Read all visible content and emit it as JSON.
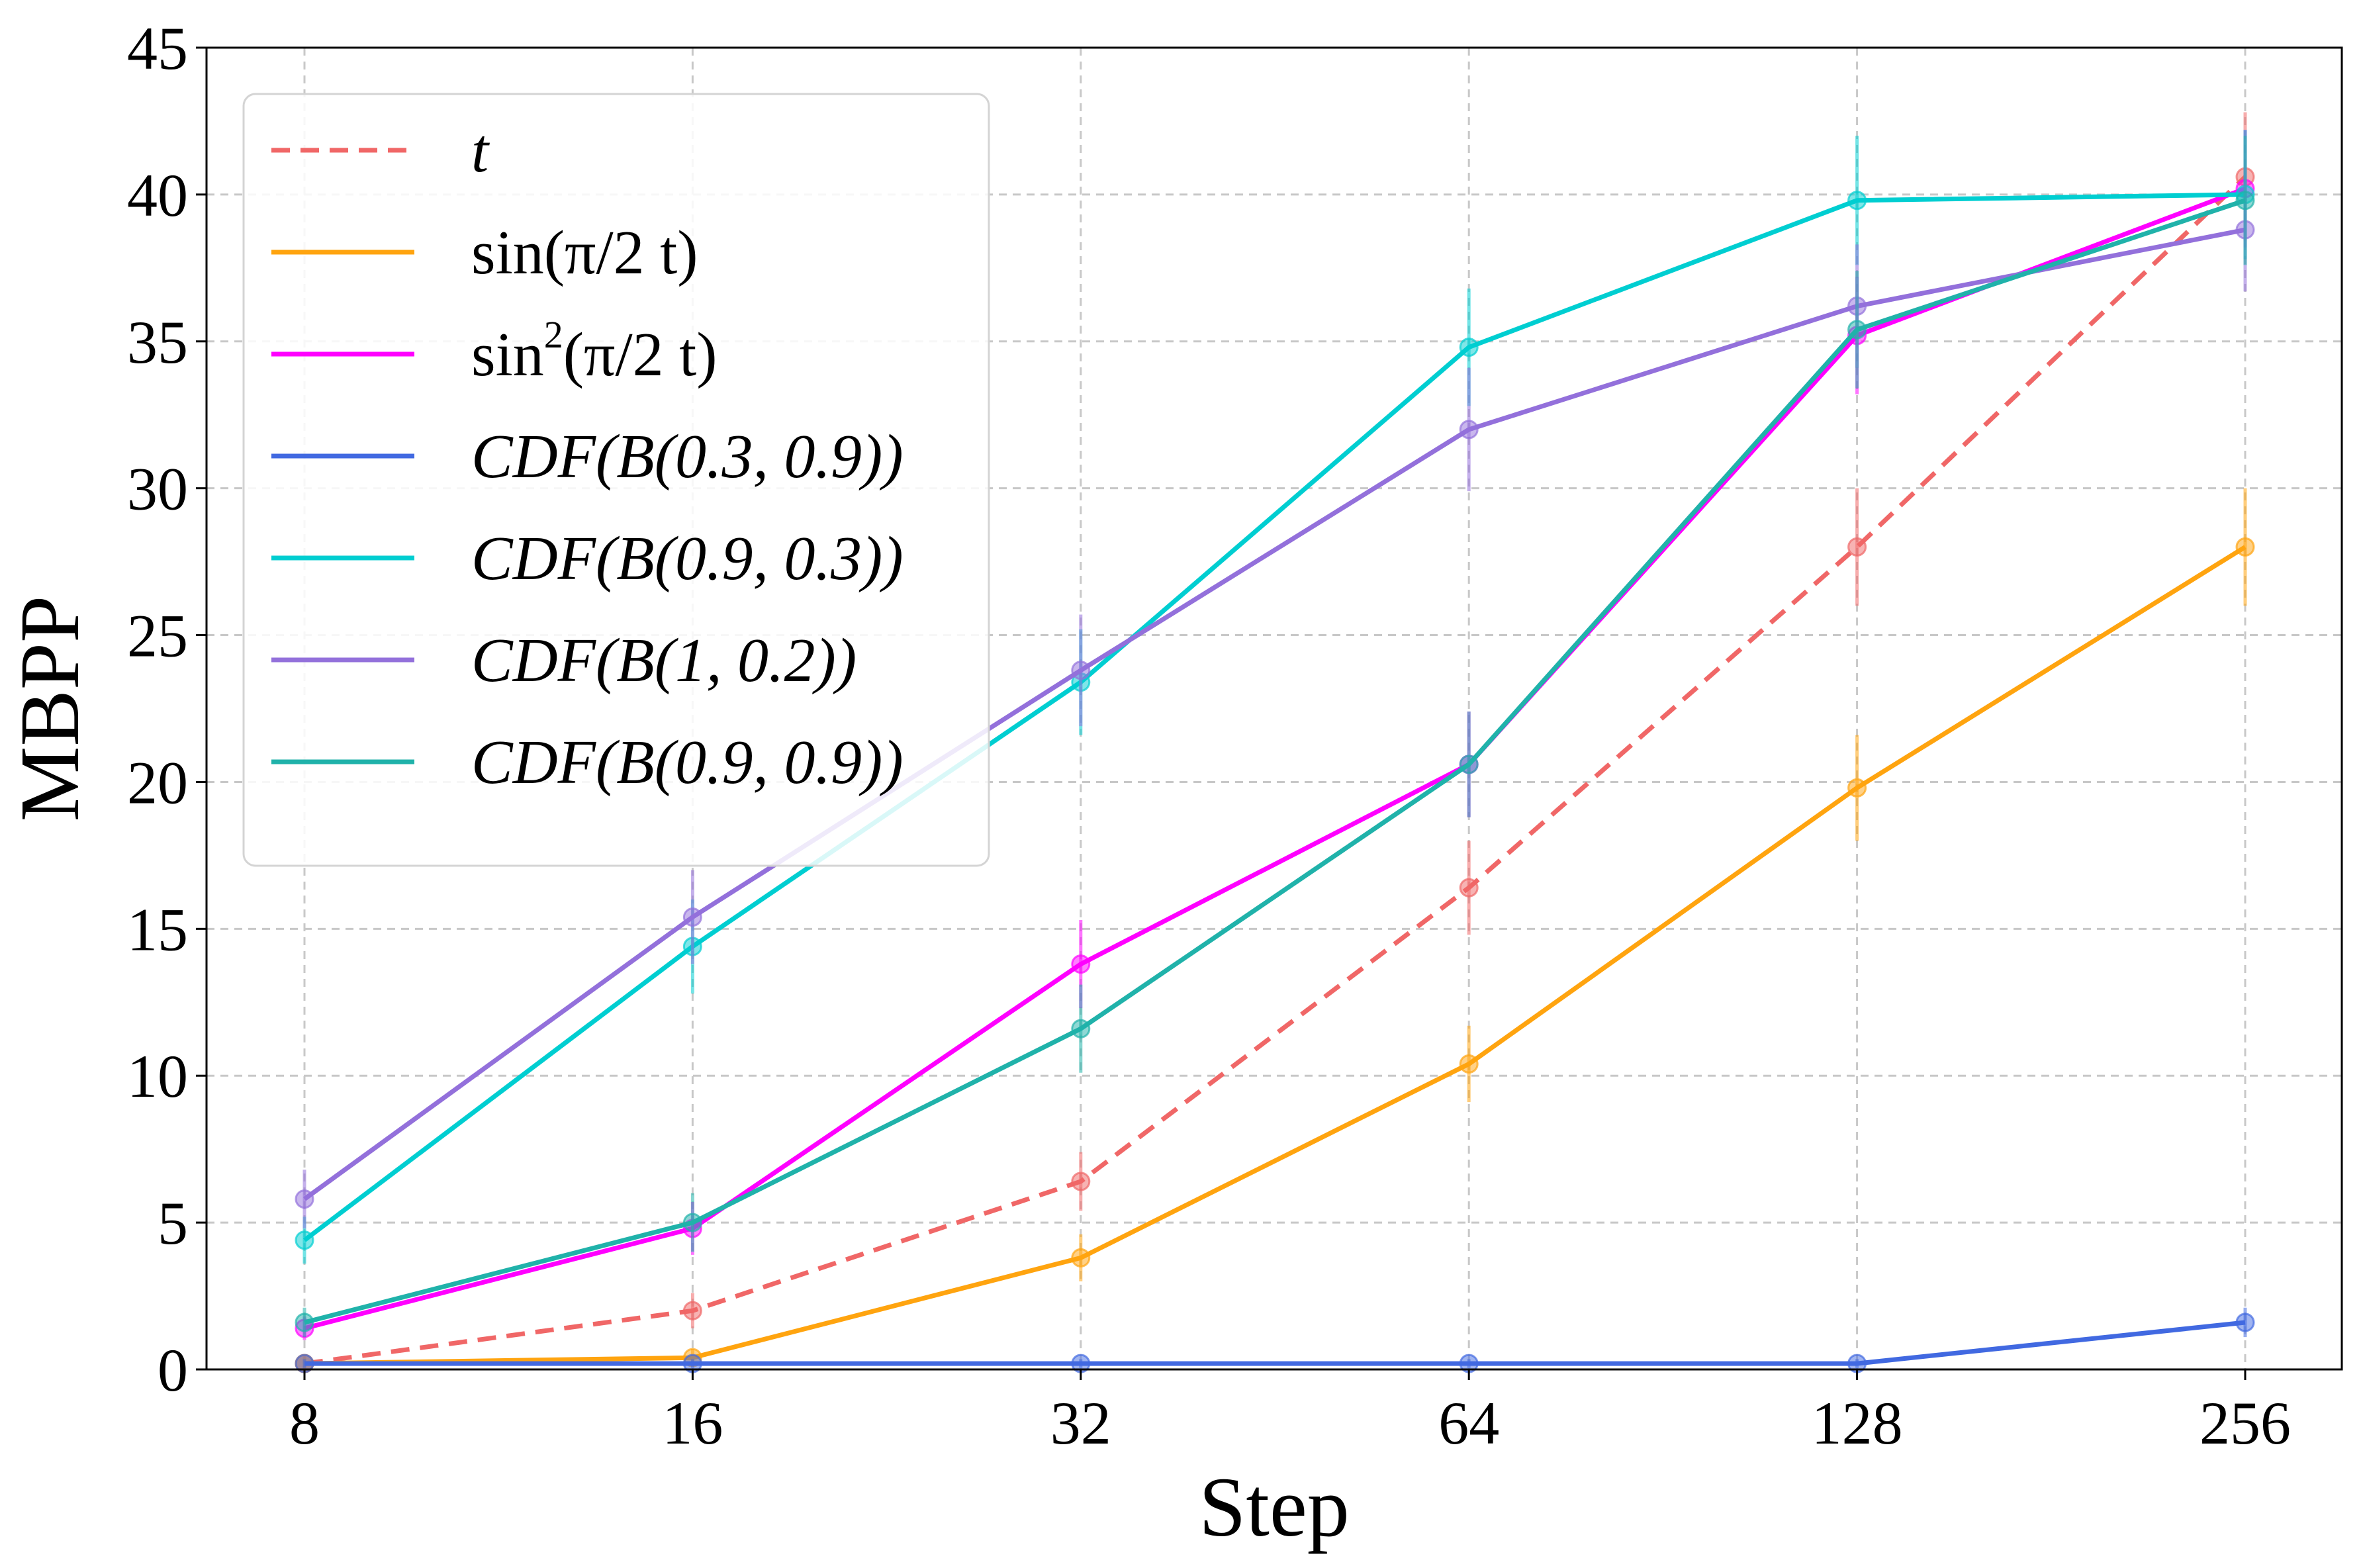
{
  "chart_data": {
    "type": "line",
    "title": "",
    "xlabel": "Step",
    "ylabel": "MBPP",
    "x_scale": "log2",
    "x": [
      8,
      16,
      32,
      64,
      128,
      256
    ],
    "x_tick_labels": [
      "8",
      "16",
      "32",
      "64",
      "128",
      "256"
    ],
    "y_ticks": [
      0,
      5,
      10,
      15,
      20,
      25,
      30,
      35,
      40,
      45
    ],
    "y_tick_labels": [
      "0",
      "5",
      "10",
      "15",
      "20",
      "25",
      "30",
      "35",
      "40",
      "45"
    ],
    "ylim": [
      0,
      45
    ],
    "grid": true,
    "legend_position": "top-left",
    "series": [
      {
        "name": "t",
        "legend": {
          "text": "t"
        },
        "color": "#f06767",
        "dashed": true,
        "values": [
          0.2,
          2.0,
          6.4,
          16.4,
          28.0,
          40.6
        ],
        "errors": [
          0.3,
          0.6,
          1.0,
          1.6,
          2.0,
          2.2
        ]
      },
      {
        "name": "sin(π/2 t)",
        "legend": {
          "text": "sin(π/2 t)"
        },
        "color": "#ffa40f",
        "dashed": false,
        "values": [
          0.2,
          0.4,
          3.8,
          10.4,
          19.8,
          28.0
        ],
        "errors": [
          0.2,
          0.3,
          0.8,
          1.3,
          1.8,
          2.0
        ]
      },
      {
        "name": "sin²(π/2 t)",
        "legend": {
          "text": "sin",
          "sup": "2",
          "rest": "(π/2 t)"
        },
        "color": "#ff00ff",
        "dashed": false,
        "values": [
          1.4,
          4.8,
          13.8,
          20.6,
          35.2,
          40.2
        ],
        "errors": [
          0.4,
          0.9,
          1.5,
          1.8,
          2.0,
          2.0
        ]
      },
      {
        "name": "CDF(B(0.3, 0.9))",
        "legend": {
          "text": "CDF(B(0.3, 0.9))"
        },
        "color": "#4169e1",
        "dashed": false,
        "values": [
          0.2,
          0.2,
          0.2,
          0.2,
          0.2,
          1.6
        ],
        "errors": [
          0.15,
          0.15,
          0.15,
          0.15,
          0.15,
          0.5
        ]
      },
      {
        "name": "CDF(B(0.9, 0.3))",
        "legend": {
          "text": "CDF(B(0.9, 0.3))"
        },
        "color": "#00ced1",
        "dashed": false,
        "values": [
          4.4,
          14.4,
          23.4,
          34.8,
          39.8,
          40.0
        ],
        "errors": [
          0.8,
          1.6,
          1.8,
          2.0,
          2.2,
          2.2
        ]
      },
      {
        "name": "CDF(B(1, 0.2))",
        "legend": {
          "text": "CDF(B(1, 0.2))"
        },
        "color": "#9370db",
        "dashed": false,
        "values": [
          5.8,
          15.4,
          23.8,
          32.0,
          36.2,
          38.8
        ],
        "errors": [
          1.0,
          1.6,
          1.9,
          2.1,
          2.1,
          2.1
        ]
      },
      {
        "name": "CDF(B(0.9, 0.9))",
        "legend": {
          "text": "CDF(B(0.9, 0.9))"
        },
        "color": "#20b2aa",
        "dashed": false,
        "values": [
          1.6,
          5.0,
          11.6,
          20.6,
          35.4,
          39.8
        ],
        "errors": [
          0.5,
          1.0,
          1.5,
          1.8,
          2.0,
          2.2
        ]
      }
    ]
  }
}
